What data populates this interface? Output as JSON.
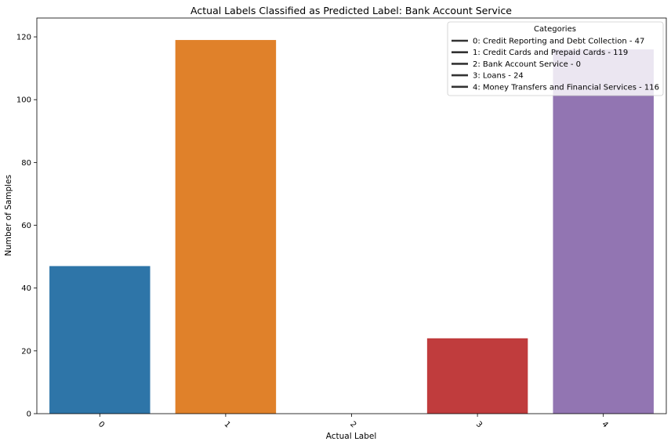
{
  "chart_data": {
    "type": "bar",
    "title": "Actual Labels Classified as Predicted Label: Bank Account Service",
    "xlabel": "Actual Label",
    "ylabel": "Number of Samples",
    "categories": [
      "0",
      "1",
      "2",
      "3",
      "4"
    ],
    "values": [
      47,
      119,
      0,
      24,
      116
    ],
    "colors": [
      "#2e75a8",
      "#e0812a",
      "#3a9a3a",
      "#c03c3d",
      "#9275b2"
    ],
    "ylim": [
      0,
      126
    ],
    "yticks": [
      0,
      20,
      40,
      60,
      80,
      100,
      120
    ],
    "xtick_rotation": 45,
    "grid": false,
    "legend": {
      "title": "Categories",
      "placement": "top-right",
      "entries": [
        "0: Credit Reporting and Debt Collection - 47",
        "1: Credit Cards and Prepaid Cards - 119",
        "2: Bank Account Service - 0",
        "3: Loans - 24",
        "4: Money Transfers and Financial Services - 116"
      ]
    }
  }
}
